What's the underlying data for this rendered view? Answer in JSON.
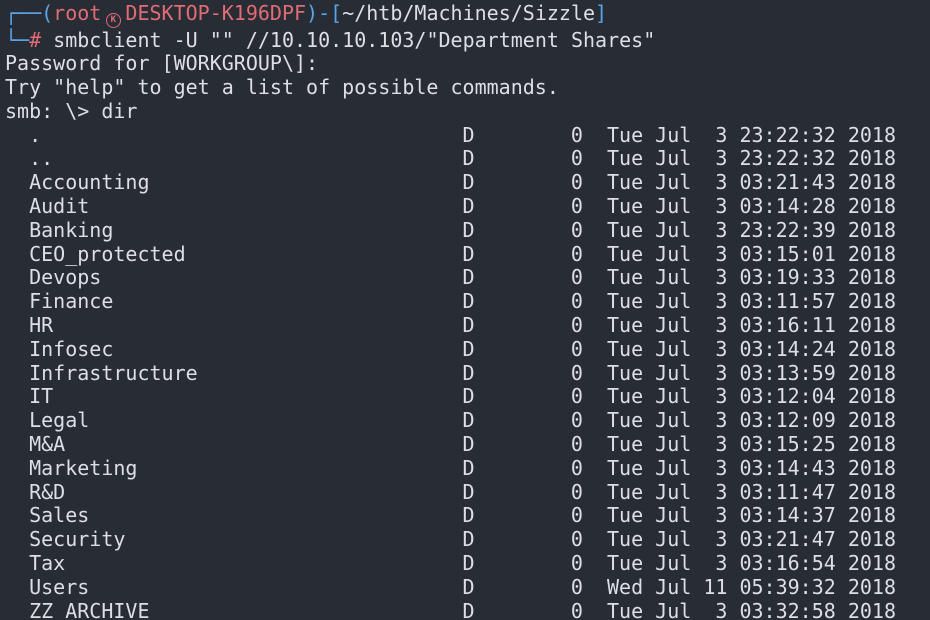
{
  "terminal": {
    "colors": {
      "background": "#282c34",
      "foreground": "#dcdfe4",
      "accent_blue": "#5aa5e8",
      "accent_red": "#e06c75"
    },
    "prompt": {
      "frame_top": "┌──(",
      "user": "root",
      "symbol_letter": "K",
      "host": "DESKTOP-K196DPF",
      "frame_mid": ")-[",
      "path": "~/htb/Machines/Sizzle",
      "frame_end": "]",
      "frame_bottom": "└─",
      "prompt_char": "#",
      "command": " smbclient -U \"\" //10.10.10.103/\"Department Shares\""
    },
    "output": {
      "password_prompt": "Password for [WORKGROUP\\]:",
      "help_hint": "Try \"help\" to get a list of possible commands.",
      "smb_command_line": "smb: \\> dir"
    },
    "listing": {
      "rows": [
        {
          "name": ".",
          "attr": "D",
          "size": "0",
          "date": "Tue Jul  3 23:22:32 2018"
        },
        {
          "name": "..",
          "attr": "D",
          "size": "0",
          "date": "Tue Jul  3 23:22:32 2018"
        },
        {
          "name": "Accounting",
          "attr": "D",
          "size": "0",
          "date": "Tue Jul  3 03:21:43 2018"
        },
        {
          "name": "Audit",
          "attr": "D",
          "size": "0",
          "date": "Tue Jul  3 03:14:28 2018"
        },
        {
          "name": "Banking",
          "attr": "D",
          "size": "0",
          "date": "Tue Jul  3 23:22:39 2018"
        },
        {
          "name": "CEO_protected",
          "attr": "D",
          "size": "0",
          "date": "Tue Jul  3 03:15:01 2018"
        },
        {
          "name": "Devops",
          "attr": "D",
          "size": "0",
          "date": "Tue Jul  3 03:19:33 2018"
        },
        {
          "name": "Finance",
          "attr": "D",
          "size": "0",
          "date": "Tue Jul  3 03:11:57 2018"
        },
        {
          "name": "HR",
          "attr": "D",
          "size": "0",
          "date": "Tue Jul  3 03:16:11 2018"
        },
        {
          "name": "Infosec",
          "attr": "D",
          "size": "0",
          "date": "Tue Jul  3 03:14:24 2018"
        },
        {
          "name": "Infrastructure",
          "attr": "D",
          "size": "0",
          "date": "Tue Jul  3 03:13:59 2018"
        },
        {
          "name": "IT",
          "attr": "D",
          "size": "0",
          "date": "Tue Jul  3 03:12:04 2018"
        },
        {
          "name": "Legal",
          "attr": "D",
          "size": "0",
          "date": "Tue Jul  3 03:12:09 2018"
        },
        {
          "name": "M&A",
          "attr": "D",
          "size": "0",
          "date": "Tue Jul  3 03:15:25 2018"
        },
        {
          "name": "Marketing",
          "attr": "D",
          "size": "0",
          "date": "Tue Jul  3 03:14:43 2018"
        },
        {
          "name": "R&D",
          "attr": "D",
          "size": "0",
          "date": "Tue Jul  3 03:11:47 2018"
        },
        {
          "name": "Sales",
          "attr": "D",
          "size": "0",
          "date": "Tue Jul  3 03:14:37 2018"
        },
        {
          "name": "Security",
          "attr": "D",
          "size": "0",
          "date": "Tue Jul  3 03:21:47 2018"
        },
        {
          "name": "Tax",
          "attr": "D",
          "size": "0",
          "date": "Tue Jul  3 03:16:54 2018"
        },
        {
          "name": "Users",
          "attr": "D",
          "size": "0",
          "date": "Wed Jul 11 05:39:32 2018"
        },
        {
          "name": "ZZ_ARCHIVE",
          "attr": "D",
          "size": "0",
          "date": "Tue Jul  3 03:32:58 2018"
        }
      ]
    }
  }
}
